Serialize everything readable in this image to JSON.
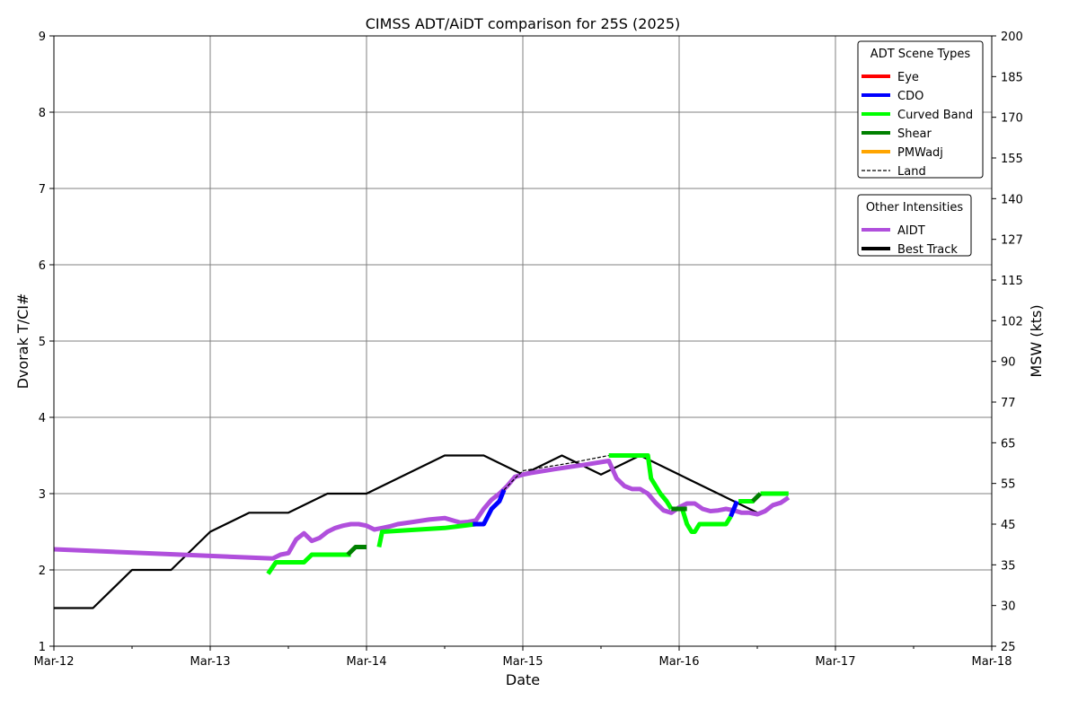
{
  "chart_data": {
    "type": "line",
    "title": "CIMSS ADT/AiDT comparison for 25S (2025)",
    "xlabel": "Date",
    "ylabel": "Dvorak T/CI#",
    "ylabel_right": "MSW (kts)",
    "x_tick_labels": [
      "Mar-12",
      "Mar-13",
      "Mar-14",
      "Mar-15",
      "Mar-16",
      "Mar-17",
      "Mar-18"
    ],
    "x_range": [
      "Mar-12",
      "Mar-18"
    ],
    "x_unit": "days since Mar-12 00Z",
    "xlim": [
      0,
      6
    ],
    "ylim": [
      1,
      9
    ],
    "y_ticks": [
      1,
      2,
      3,
      4,
      5,
      6,
      7,
      8,
      9
    ],
    "y_right_tick_labels": [
      "25",
      "30",
      "35",
      "45",
      "55",
      "65",
      "77",
      "90",
      "102",
      "115",
      "127",
      "140",
      "155",
      "170",
      "185",
      "200"
    ],
    "grid": true,
    "legends": [
      {
        "title": "ADT Scene Types",
        "placement": "top-right",
        "entries": [
          {
            "label": "Eye",
            "color": "#ff0000",
            "style": "solid"
          },
          {
            "label": "CDO",
            "color": "#0000ff",
            "style": "solid"
          },
          {
            "label": "Curved Band",
            "color": "#00ff00",
            "style": "solid"
          },
          {
            "label": "Shear",
            "color": "#008000",
            "style": "solid"
          },
          {
            "label": "PMWadj",
            "color": "#ffa500",
            "style": "solid"
          },
          {
            "label": "Land",
            "color": "#000000",
            "style": "dashed"
          }
        ]
      },
      {
        "title": "Other Intensities",
        "placement": "right",
        "entries": [
          {
            "label": "AIDT",
            "color": "#b04fdc",
            "style": "solid"
          },
          {
            "label": "Best Track",
            "color": "#000000",
            "style": "solid"
          }
        ]
      }
    ],
    "series": [
      {
        "name": "Best Track",
        "color": "#000000",
        "style": "solid",
        "x": [
          0,
          0.25,
          0.5,
          0.75,
          1.0,
          1.25,
          1.5,
          1.75,
          2.0,
          2.25,
          2.5,
          2.75,
          3.0,
          3.25,
          3.5,
          3.75,
          4.0,
          4.25,
          4.5
        ],
        "y": [
          1.5,
          1.5,
          2.0,
          2.0,
          2.5,
          2.75,
          2.75,
          3.0,
          3.0,
          3.25,
          3.5,
          3.5,
          3.25,
          3.5,
          3.25,
          3.5,
          3.25,
          3.0,
          2.75
        ]
      },
      {
        "name": "AIDT",
        "color": "#b04fdc",
        "style": "solid",
        "x": [
          0,
          1.4,
          1.45,
          1.5,
          1.55,
          1.6,
          1.65,
          1.7,
          1.75,
          1.8,
          1.85,
          1.9,
          1.95,
          2.0,
          2.05,
          2.1,
          2.15,
          2.2,
          2.3,
          2.4,
          2.5,
          2.6,
          2.65,
          2.7,
          2.75,
          2.8,
          2.85,
          2.9,
          2.95,
          3.0,
          3.05,
          3.2,
          3.4,
          3.55,
          3.6,
          3.65,
          3.7,
          3.75,
          3.8,
          3.85,
          3.9,
          3.95,
          4.0,
          4.05,
          4.1,
          4.15,
          4.2,
          4.25,
          4.3,
          4.35,
          4.4,
          4.45,
          4.5,
          4.55,
          4.6,
          4.65,
          4.7
        ],
        "y": [
          2.27,
          2.15,
          2.2,
          2.22,
          2.4,
          2.48,
          2.38,
          2.42,
          2.5,
          2.55,
          2.58,
          2.6,
          2.6,
          2.58,
          2.53,
          2.55,
          2.57,
          2.6,
          2.63,
          2.66,
          2.68,
          2.62,
          2.63,
          2.65,
          2.8,
          2.92,
          3.0,
          3.1,
          3.22,
          3.25,
          3.27,
          3.32,
          3.38,
          3.43,
          3.2,
          3.1,
          3.06,
          3.06,
          3.0,
          2.88,
          2.78,
          2.75,
          2.82,
          2.87,
          2.87,
          2.8,
          2.77,
          2.78,
          2.8,
          2.78,
          2.75,
          2.75,
          2.73,
          2.77,
          2.85,
          2.88,
          2.95
        ]
      },
      {
        "name": "Curved Band",
        "color": "#00ff00",
        "style": "solid",
        "segments": [
          {
            "x": [
              1.37,
              1.42,
              1.6,
              1.65,
              1.9
            ],
            "y": [
              1.95,
              2.1,
              2.1,
              2.2,
              2.2
            ]
          },
          {
            "x": [
              2.08,
              2.1,
              2.5,
              2.7
            ],
            "y": [
              2.3,
              2.5,
              2.55,
              2.6
            ]
          },
          {
            "x": [
              3.55,
              3.8,
              3.82,
              3.85,
              3.88,
              3.92,
              3.95
            ],
            "y": [
              3.5,
              3.5,
              3.2,
              3.1,
              3.0,
              2.9,
              2.8
            ]
          },
          {
            "x": [
              4.02,
              4.05,
              4.08,
              4.1,
              4.13,
              4.3,
              4.33
            ],
            "y": [
              2.8,
              2.6,
              2.5,
              2.5,
              2.6,
              2.6,
              2.7
            ]
          },
          {
            "x": [
              4.38,
              4.48
            ],
            "y": [
              2.9,
              2.9
            ]
          },
          {
            "x": [
              4.52,
              4.7
            ],
            "y": [
              3.0,
              3.0
            ]
          }
        ]
      },
      {
        "name": "Shear",
        "color": "#008000",
        "style": "solid",
        "segments": [
          {
            "x": [
              1.88,
              1.93,
              1.96,
              2.0
            ],
            "y": [
              2.2,
              2.3,
              2.3,
              2.3
            ]
          },
          {
            "x": [
              3.95,
              4.05
            ],
            "y": [
              2.8,
              2.8
            ]
          },
          {
            "x": [
              4.47,
              4.52
            ],
            "y": [
              2.9,
              3.0
            ]
          }
        ]
      },
      {
        "name": "CDO",
        "color": "#0000ff",
        "style": "solid",
        "segments": [
          {
            "x": [
              2.68,
              2.75,
              2.8,
              2.85,
              2.88
            ],
            "y": [
              2.6,
              2.6,
              2.8,
              2.9,
              3.05
            ]
          },
          {
            "x": [
              4.33,
              4.37
            ],
            "y": [
              2.7,
              2.9
            ]
          }
        ]
      },
      {
        "name": "Land",
        "color": "#000000",
        "style": "dashed",
        "x": [
          2.88,
          2.95,
          3.0,
          3.3,
          3.55
        ],
        "y": [
          3.05,
          3.2,
          3.3,
          3.4,
          3.5
        ]
      }
    ]
  }
}
